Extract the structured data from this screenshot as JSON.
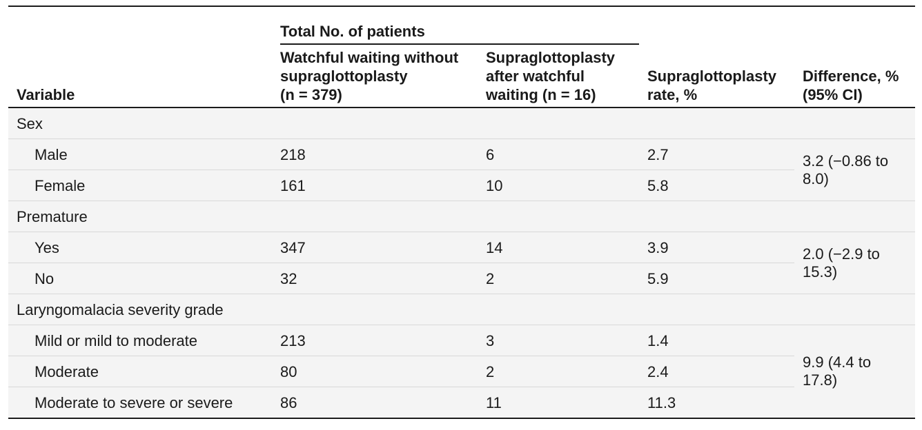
{
  "table": {
    "group_header": "Total No. of patients",
    "columns": {
      "variable": "Variable",
      "watchful": [
        "Watchful waiting without",
        "supraglottoplasty",
        "(n = 379)"
      ],
      "supra_after": [
        "Supraglottoplasty",
        "after watchful",
        "waiting (n = 16)"
      ],
      "rate": [
        "Supraglottoplasty",
        "rate, %"
      ],
      "difference": [
        "Difference, %",
        "(95% CI)"
      ]
    },
    "sections": [
      {
        "label": "Sex",
        "difference": [
          "3.2 (−0.86 to",
          "8.0)"
        ],
        "rows": [
          {
            "label": "Male",
            "watchful": "218",
            "supra_after": "6",
            "rate": "2.7"
          },
          {
            "label": "Female",
            "watchful": "161",
            "supra_after": "10",
            "rate": "5.8"
          }
        ]
      },
      {
        "label": "Premature",
        "difference": [
          "2.0 (−2.9 to",
          "15.3)"
        ],
        "rows": [
          {
            "label": "Yes",
            "watchful": "347",
            "supra_after": "14",
            "rate": "3.9"
          },
          {
            "label": "No",
            "watchful": "32",
            "supra_after": "2",
            "rate": "5.9"
          }
        ]
      },
      {
        "label": "Laryngomalacia severity grade",
        "difference": [
          "9.9 (4.4 to",
          "17.8)"
        ],
        "rows": [
          {
            "label": "Mild or mild to moderate",
            "watchful": "213",
            "supra_after": "3",
            "rate": "1.4"
          },
          {
            "label": "Moderate",
            "watchful": "80",
            "supra_after": "2",
            "rate": "2.4"
          },
          {
            "label": "Moderate to severe or severe",
            "watchful": "86",
            "supra_after": "11",
            "rate": "11.3"
          }
        ]
      }
    ]
  }
}
